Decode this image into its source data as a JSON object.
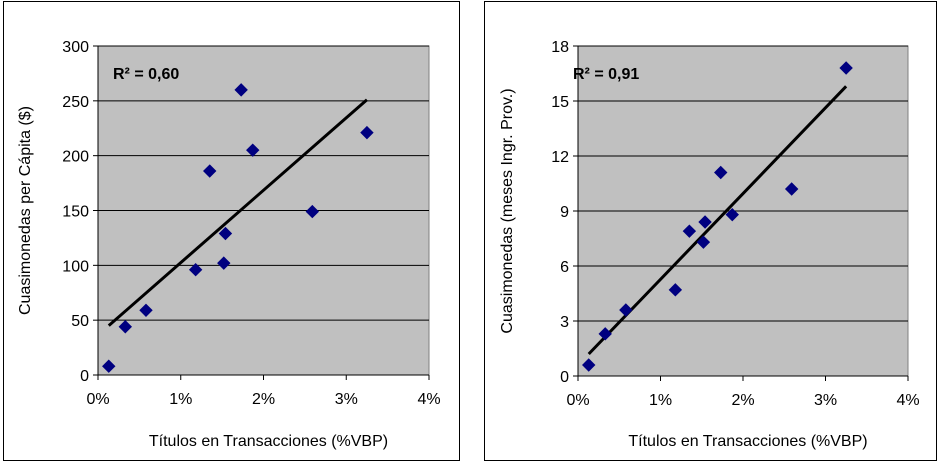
{
  "chart_data": [
    {
      "type": "scatter",
      "xlabel": "Títulos en Transacciones (%VBP)",
      "ylabel": "Cuasimonedas per Cápita ($)",
      "annotation": "R² = 0,60",
      "xlim": [
        0,
        0.04
      ],
      "ylim": [
        0,
        300
      ],
      "xticks": [
        0,
        0.01,
        0.02,
        0.03,
        0.04
      ],
      "xtick_labels": [
        "0%",
        "1%",
        "2%",
        "3%",
        "4%"
      ],
      "yticks": [
        0,
        50,
        100,
        150,
        200,
        250,
        300
      ],
      "ytick_labels": [
        "0",
        "50",
        "100",
        "150",
        "200",
        "250",
        "300"
      ],
      "points": [
        {
          "x": 0.0013,
          "y": 8
        },
        {
          "x": 0.0033,
          "y": 44
        },
        {
          "x": 0.0058,
          "y": 59
        },
        {
          "x": 0.0118,
          "y": 96
        },
        {
          "x": 0.0135,
          "y": 186
        },
        {
          "x": 0.0152,
          "y": 102
        },
        {
          "x": 0.0154,
          "y": 129
        },
        {
          "x": 0.0173,
          "y": 260
        },
        {
          "x": 0.0187,
          "y": 205
        },
        {
          "x": 0.0259,
          "y": 149
        },
        {
          "x": 0.0325,
          "y": 221
        }
      ],
      "trendline": {
        "x": [
          0.0013,
          0.0325
        ],
        "y": [
          45,
          251
        ]
      },
      "grid": "horizontal",
      "marker_color": "#000080",
      "plot_background": "#c0c0c0"
    },
    {
      "type": "scatter",
      "xlabel": "Títulos en Transacciones (%VBP)",
      "ylabel": "Cuasimonedas (meses Ingr. Prov.)",
      "annotation": "R² = 0,91",
      "xlim": [
        0,
        0.04
      ],
      "ylim": [
        0,
        18
      ],
      "xticks": [
        0,
        0.01,
        0.02,
        0.03,
        0.04
      ],
      "xtick_labels": [
        "0%",
        "1%",
        "2%",
        "3%",
        "4%"
      ],
      "yticks": [
        0,
        3,
        6,
        9,
        12,
        15,
        18
      ],
      "ytick_labels": [
        "0",
        "3",
        "6",
        "9",
        "12",
        "15",
        "18"
      ],
      "points": [
        {
          "x": 0.0013,
          "y": 0.6
        },
        {
          "x": 0.0033,
          "y": 2.3
        },
        {
          "x": 0.0058,
          "y": 3.6
        },
        {
          "x": 0.0118,
          "y": 4.7
        },
        {
          "x": 0.0135,
          "y": 7.9
        },
        {
          "x": 0.0152,
          "y": 7.3
        },
        {
          "x": 0.0154,
          "y": 8.4
        },
        {
          "x": 0.0173,
          "y": 11.1
        },
        {
          "x": 0.0187,
          "y": 8.8
        },
        {
          "x": 0.0259,
          "y": 10.2
        },
        {
          "x": 0.0325,
          "y": 16.8
        }
      ],
      "trendline": {
        "x": [
          0.0013,
          0.0325
        ],
        "y": [
          1.2,
          15.8
        ]
      },
      "grid": "horizontal",
      "marker_color": "#000080",
      "plot_background": "#c0c0c0"
    }
  ]
}
